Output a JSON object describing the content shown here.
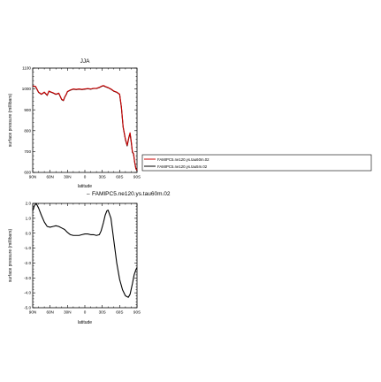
{
  "chart_data": [
    {
      "type": "line",
      "title": "JJA",
      "xlabel": "latitude",
      "ylabel": "surface pressure (millibars)",
      "xlim": [
        90,
        -90
      ],
      "ylim": [
        600,
        1100
      ],
      "x_ticks": [
        90,
        60,
        30,
        0,
        -30,
        -60,
        -90
      ],
      "x_tick_labels": [
        "90N",
        "60N",
        "30N",
        "0",
        "30S",
        "60S",
        "90S"
      ],
      "y_ticks": [
        600,
        700,
        800,
        900,
        1000,
        1100
      ],
      "y_tick_labels": [
        "600",
        "700",
        "800",
        "900",
        "1000",
        "1100"
      ],
      "legend_position": "right",
      "series": [
        {
          "name": "FAMIPC5.ne120.ys.tau60m.02",
          "color": "#cc0000",
          "x": [
            90,
            85,
            80,
            75,
            70,
            65,
            62,
            58,
            55,
            50,
            45,
            40,
            37,
            35,
            32,
            30,
            25,
            20,
            15,
            10,
            5,
            0,
            -5,
            -10,
            -15,
            -20,
            -25,
            -30,
            -33,
            -35,
            -40,
            -45,
            -50,
            -55,
            -60,
            -63,
            -66,
            -70,
            -73,
            -76,
            -78,
            -80,
            -82,
            -84,
            -86,
            -88,
            -90
          ],
          "y": [
            1015,
            1012,
            985,
            975,
            985,
            970,
            990,
            985,
            982,
            975,
            980,
            950,
            945,
            960,
            975,
            988,
            995,
            1000,
            998,
            1000,
            998,
            1000,
            1002,
            1000,
            1003,
            1003,
            1008,
            1015,
            1016,
            1012,
            1007,
            1000,
            990,
            985,
            975,
            915,
            820,
            760,
            730,
            770,
            790,
            750,
            700,
            690,
            650,
            620,
            610
          ]
        },
        {
          "name": "FAMIPC5.ne120.ys.tau5m.02",
          "color": "#000000",
          "x": [
            90,
            85,
            80,
            75,
            70,
            65,
            62,
            58,
            55,
            50,
            45,
            40,
            37,
            35,
            32,
            30,
            25,
            20,
            15,
            10,
            5,
            0,
            -5,
            -10,
            -15,
            -20,
            -25,
            -30,
            -33,
            -35,
            -40,
            -45,
            -50,
            -55,
            -60,
            -63,
            -66,
            -70,
            -73,
            -76,
            -78,
            -80,
            -82,
            -84,
            -86,
            -88,
            -90
          ],
          "y": [
            1014,
            1011,
            984,
            974,
            984,
            969,
            989,
            984,
            981,
            974,
            979,
            949,
            944,
            959,
            974,
            987,
            994,
            999,
            997,
            999,
            997,
            999,
            1001,
            999,
            1002,
            1002,
            1007,
            1014,
            1015,
            1011,
            1006,
            999,
            989,
            984,
            974,
            912,
            817,
            757,
            727,
            767,
            785,
            745,
            697,
            688,
            648,
            618,
            608
          ]
        }
      ]
    },
    {
      "type": "line",
      "title": "FAMIPC5.ne120.ys.tau60m.02",
      "xlabel": "latitude",
      "ylabel": "surface pressure (millibars)",
      "xlim": [
        90,
        -90
      ],
      "ylim": [
        -5.0,
        2.0
      ],
      "x_ticks": [
        90,
        60,
        30,
        0,
        -30,
        -60,
        -90
      ],
      "x_tick_labels": [
        "90N",
        "60N",
        "30N",
        "0",
        "30S",
        "60S",
        "90S"
      ],
      "y_ticks": [
        -5.0,
        -4.0,
        -3.0,
        -2.0,
        -1.0,
        0.0,
        1.0,
        2.0
      ],
      "y_tick_labels": [
        "-5.0",
        "-4.0",
        "-3.0",
        "-2.0",
        "-1.0",
        "0.0",
        "1.0",
        "2.0"
      ],
      "series": [
        {
          "color": "#000000",
          "x": [
            90,
            87,
            84,
            80,
            75,
            70,
            65,
            60,
            55,
            50,
            45,
            40,
            35,
            30,
            25,
            20,
            15,
            10,
            5,
            0,
            -5,
            -10,
            -15,
            -20,
            -25,
            -28,
            -32,
            -35,
            -38,
            -40,
            -45,
            -50,
            -55,
            -60,
            -65,
            -70,
            -75,
            -78,
            -82,
            -85,
            -88,
            -90
          ],
          "y": [
            1.5,
            1.85,
            2.0,
            1.7,
            1.2,
            0.75,
            0.45,
            0.4,
            0.45,
            0.5,
            0.45,
            0.35,
            0.25,
            0.05,
            -0.1,
            -0.15,
            -0.15,
            -0.15,
            -0.1,
            -0.05,
            -0.05,
            -0.1,
            -0.1,
            -0.15,
            -0.1,
            0.15,
            0.7,
            1.2,
            1.5,
            1.55,
            1.0,
            -0.5,
            -2.0,
            -3.1,
            -3.8,
            -4.2,
            -4.3,
            -4.1,
            -3.4,
            -2.8,
            -2.45,
            -2.3
          ]
        }
      ]
    }
  ]
}
